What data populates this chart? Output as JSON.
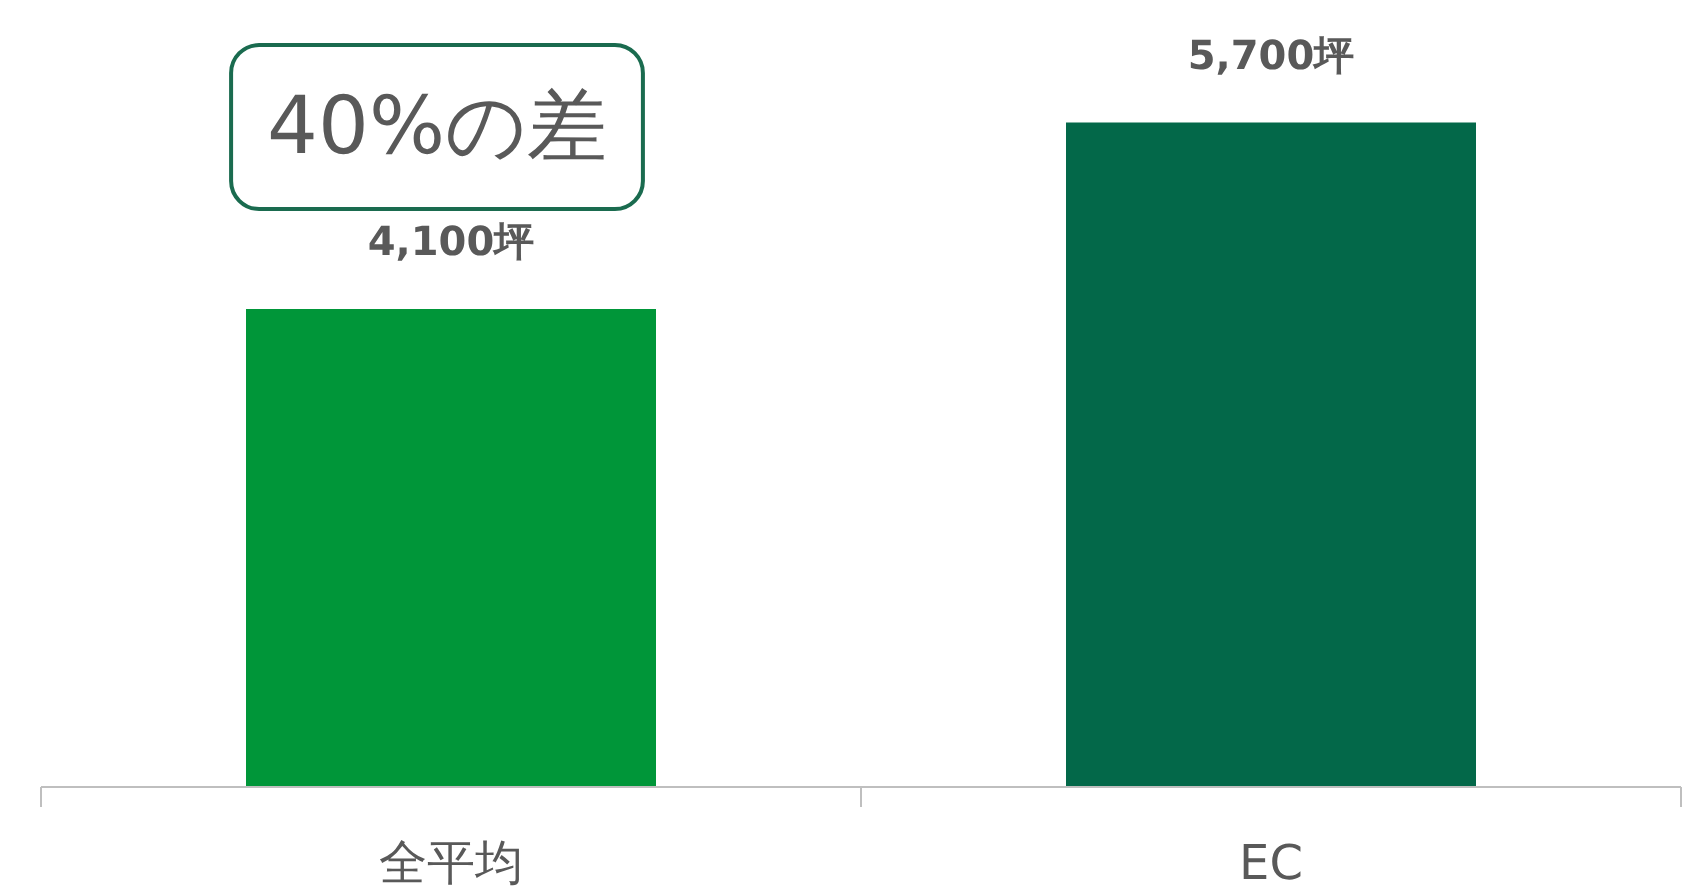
{
  "chart_data": {
    "type": "bar",
    "categories": [
      "全平均",
      "EC"
    ],
    "values": [
      4100,
      5700
    ],
    "colors": [
      "#009639",
      "#036849"
    ],
    "value_labels": [
      "4,100坪",
      "5,700坪"
    ],
    "tick_labels": "x",
    "grid": false,
    "annotations": [
      "40%の差"
    ]
  }
}
